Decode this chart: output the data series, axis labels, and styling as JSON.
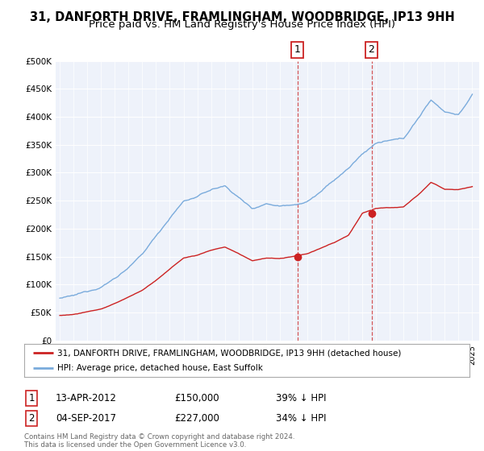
{
  "title": "31, DANFORTH DRIVE, FRAMLINGHAM, WOODBRIDGE, IP13 9HH",
  "subtitle": "Price paid vs. HM Land Registry's House Price Index (HPI)",
  "title_fontsize": 10.5,
  "subtitle_fontsize": 9.5,
  "ylim": [
    0,
    500000
  ],
  "yticks": [
    0,
    50000,
    100000,
    150000,
    200000,
    250000,
    300000,
    350000,
    400000,
    450000,
    500000
  ],
  "ytick_labels": [
    "£0",
    "£50K",
    "£100K",
    "£150K",
    "£200K",
    "£250K",
    "£300K",
    "£350K",
    "£400K",
    "£450K",
    "£500K"
  ],
  "hpi_color": "#7aabdc",
  "price_color": "#cc2222",
  "sale1_x": 2012.28,
  "sale1_price": 150000,
  "sale2_x": 2017.67,
  "sale2_price": 227000,
  "legend_line1": "31, DANFORTH DRIVE, FRAMLINGHAM, WOODBRIDGE, IP13 9HH (detached house)",
  "legend_line2": "HPI: Average price, detached house, East Suffolk",
  "footer": "Contains HM Land Registry data © Crown copyright and database right 2024.\nThis data is licensed under the Open Government Licence v3.0.",
  "background_color": "#ffffff",
  "plot_bg_color": "#eef2fa",
  "xmin": 1994.7,
  "xmax": 2025.5,
  "hpi_anchor_years": [
    1995,
    1996,
    1997,
    1998,
    1999,
    2000,
    2001,
    2002,
    2003,
    2004,
    2005,
    2006,
    2007,
    2008,
    2009,
    2010,
    2011,
    2012,
    2013,
    2014,
    2015,
    2016,
    2017,
    2018,
    2019,
    2020,
    2021,
    2022,
    2023,
    2024,
    2025
  ],
  "hpi_anchor_vals": [
    74000,
    77000,
    84000,
    94000,
    110000,
    130000,
    152000,
    185000,
    218000,
    248000,
    256000,
    268000,
    275000,
    255000,
    235000,
    245000,
    242000,
    246000,
    252000,
    270000,
    290000,
    310000,
    335000,
    355000,
    358000,
    360000,
    395000,
    430000,
    410000,
    405000,
    440000
  ],
  "price_anchor_years": [
    1995,
    1996,
    1997,
    1998,
    1999,
    2000,
    2001,
    2002,
    2003,
    2004,
    2005,
    2006,
    2007,
    2008,
    2009,
    2010,
    2011,
    2012,
    2013,
    2014,
    2015,
    2016,
    2017,
    2018,
    2019,
    2020,
    2021,
    2022,
    2023,
    2024,
    2025
  ],
  "price_anchor_vals": [
    45000,
    47000,
    52000,
    57000,
    66000,
    78000,
    90000,
    108000,
    128000,
    148000,
    153000,
    162000,
    168000,
    156000,
    143000,
    148000,
    147000,
    150000,
    155000,
    165000,
    175000,
    187000,
    227000,
    236000,
    237000,
    238000,
    258000,
    282000,
    270000,
    270000,
    275000
  ]
}
